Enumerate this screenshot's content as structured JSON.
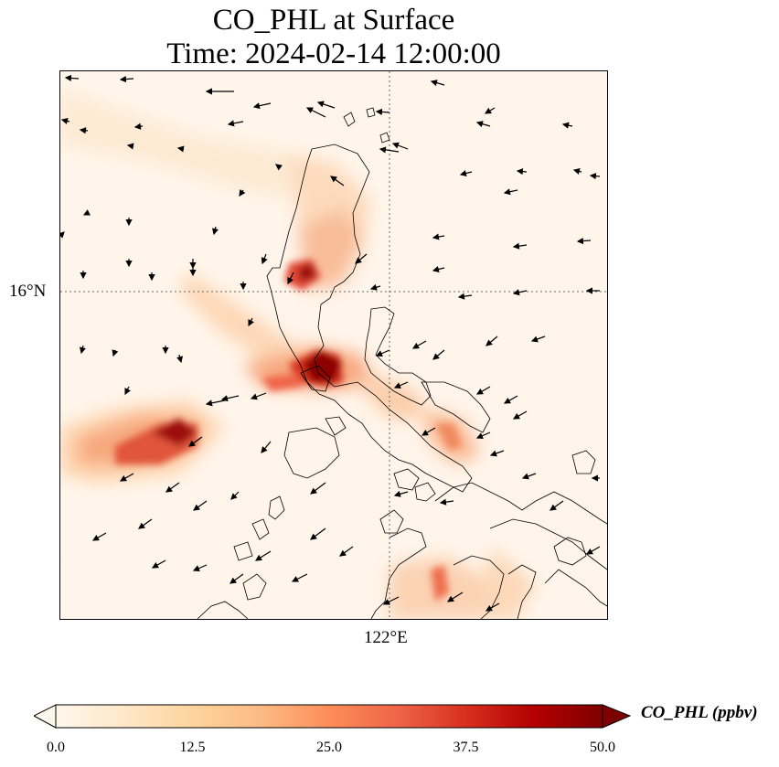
{
  "title": {
    "line1": "CO_PHL at Surface",
    "line2": "Time: 2024-02-14 12:00:00"
  },
  "map": {
    "lat_label": "16°N",
    "lon_label": "122°E",
    "gridlines": "dotted"
  },
  "colorbar": {
    "label": "CO_PHL (ppbv)",
    "colormap": "OrRd",
    "ticks": [
      "0.0",
      "12.5",
      "25.0",
      "37.5",
      "50.0"
    ],
    "range": [
      0,
      50
    ],
    "extend": "both",
    "colors": [
      "#fff7ec",
      "#fee8c8",
      "#fdd49e",
      "#fdbb84",
      "#fc8d59",
      "#ef6548",
      "#d7301f",
      "#b30000",
      "#7f0000"
    ]
  }
}
